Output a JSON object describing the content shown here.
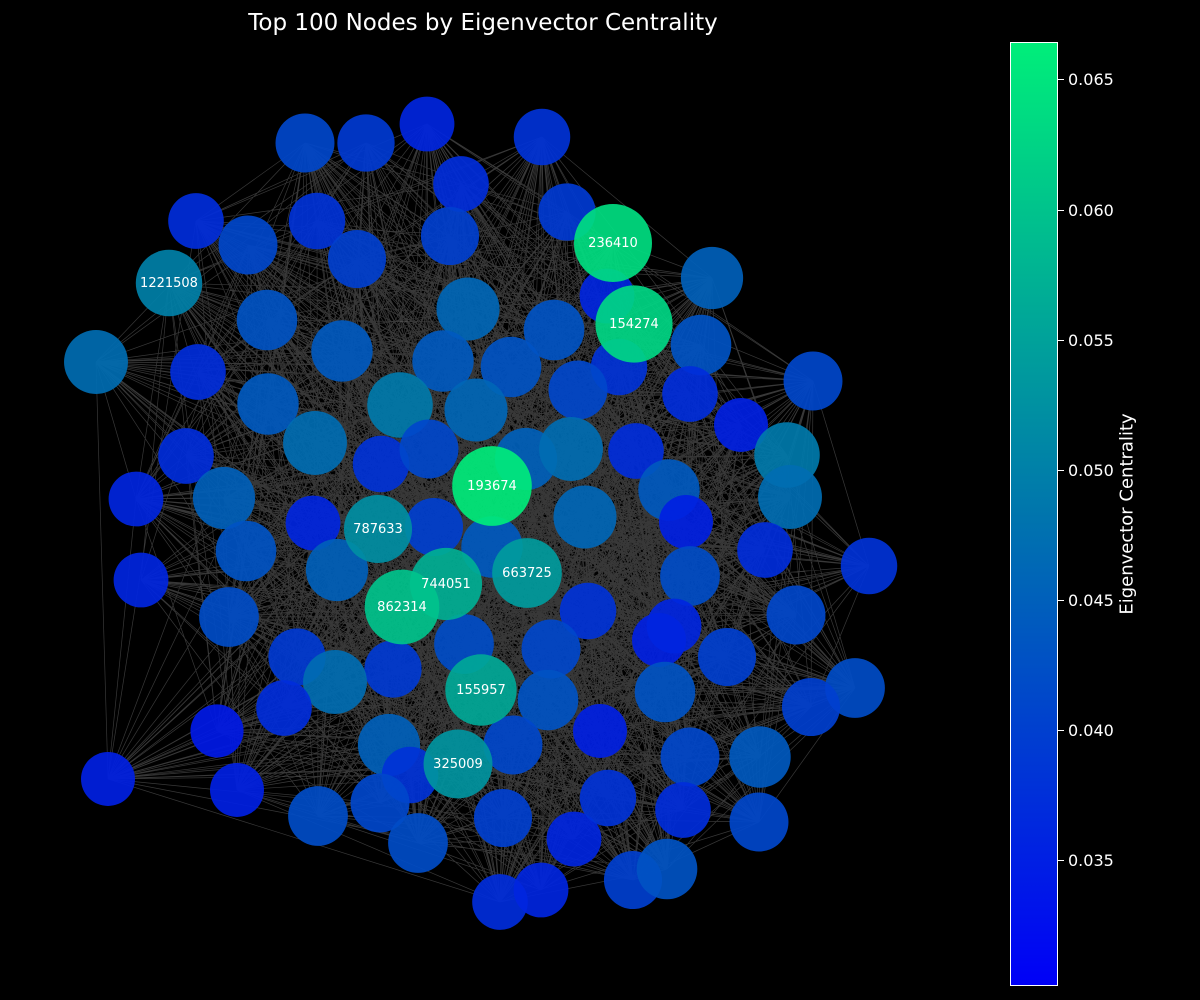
{
  "title": "Top 100 Nodes by Eigenvector Centrality",
  "colorbar": {
    "label": "Eigenvector Centrality",
    "range": [
      0.0302,
      0.0664
    ],
    "ticks": [
      "0.035",
      "0.040",
      "0.045",
      "0.050",
      "0.055",
      "0.060",
      "0.065"
    ],
    "colors": {
      "low": "#0000f7",
      "mid": "#0075ad",
      "high": "#00ee7a"
    }
  },
  "chart_data": {
    "type": "network",
    "node_count": 100,
    "edges": "dense (white, semi-transparent)",
    "labeled_nodes": [
      {
        "id": "236410",
        "value": 0.064
      },
      {
        "id": "154274",
        "value": 0.063
      },
      {
        "id": "193674",
        "value": 0.066
      },
      {
        "id": "1221508",
        "value": 0.05
      },
      {
        "id": "787633",
        "value": 0.052
      },
      {
        "id": "744051",
        "value": 0.057
      },
      {
        "id": "663725",
        "value": 0.054
      },
      {
        "id": "862314",
        "value": 0.06
      },
      {
        "id": "155957",
        "value": 0.056
      },
      {
        "id": "325009",
        "value": 0.053
      }
    ]
  }
}
